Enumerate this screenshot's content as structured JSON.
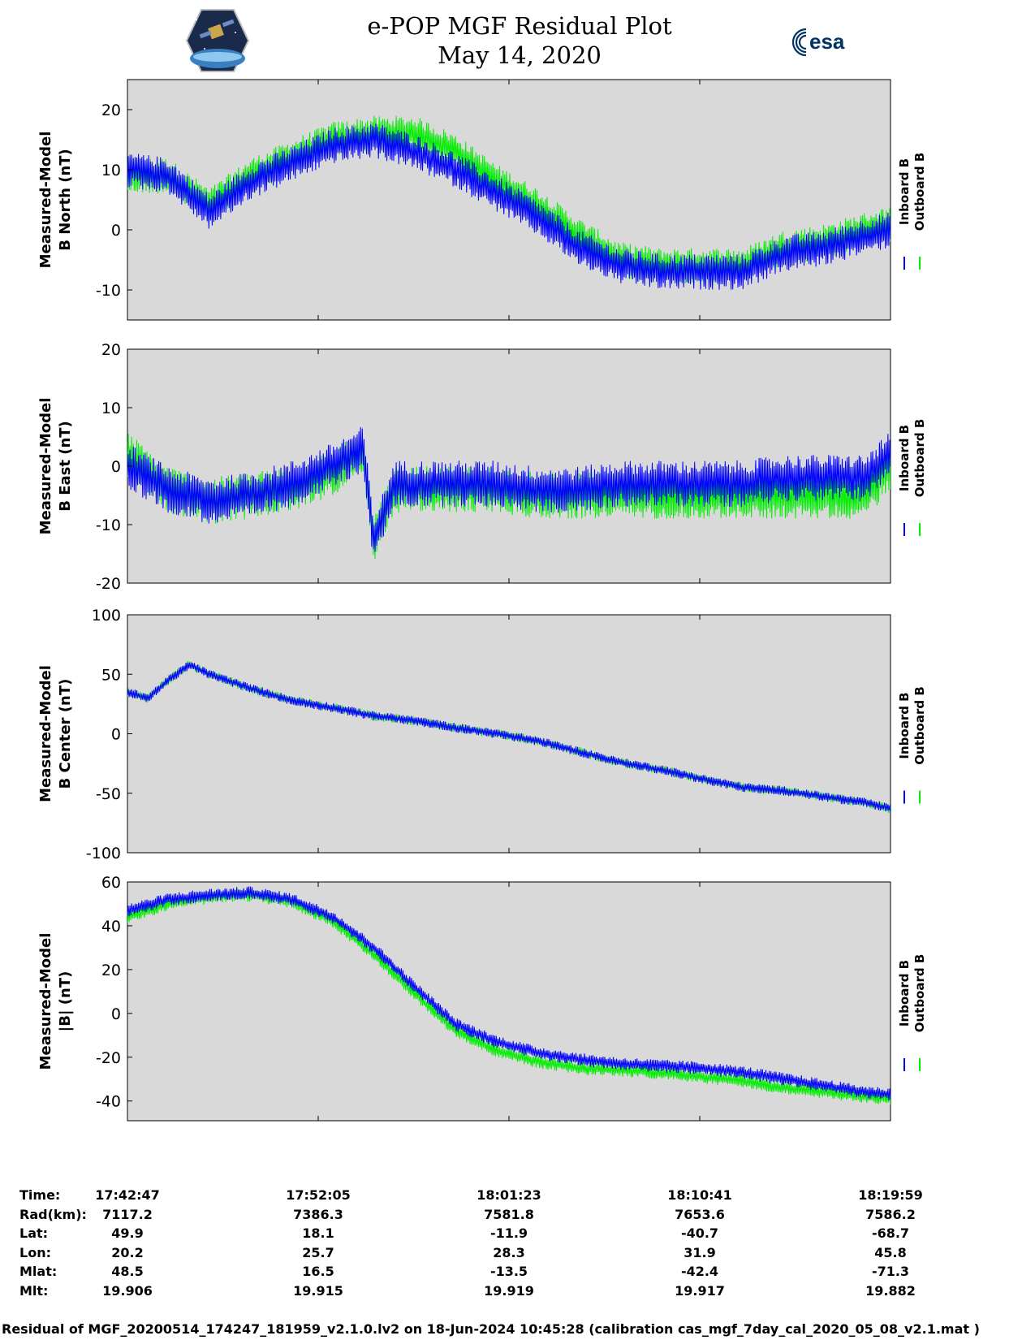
{
  "header": {
    "title_line1": "e-POP MGF Residual Plot",
    "title_line2": "May 14, 2020"
  },
  "logos": {
    "left": "cassiope-mission-logo",
    "right": "esa-logo",
    "esa_text": "esa"
  },
  "colors": {
    "inboard": "#0000ff",
    "outboard": "#00ee00",
    "panel_bg": "#d9d9d9"
  },
  "chart_data": [
    {
      "type": "line",
      "ylabel_line1": "Measured-Model",
      "ylabel_line2": "B North (nT)",
      "ylim": [
        -15,
        25
      ],
      "yticks": [
        20,
        10,
        0,
        -10
      ],
      "ytick_labels": [
        "20",
        "10",
        "0",
        "-10"
      ],
      "legend": [
        "Inboard B",
        "Outboard B"
      ],
      "x_minutes": [
        0,
        2,
        4,
        6,
        8,
        10,
        12,
        14,
        16,
        18,
        20,
        22,
        24,
        26,
        28,
        30,
        32,
        34,
        36,
        37.2
      ],
      "series": [
        {
          "name": "Inboard B",
          "values": [
            10,
            9,
            3,
            8,
            11,
            14,
            15,
            13,
            10,
            6,
            2,
            -3,
            -6,
            -7,
            -7,
            -7,
            -4,
            -3,
            -1,
            0
          ]
        },
        {
          "name": "Outboard B",
          "values": [
            9,
            9,
            4,
            9,
            12,
            15,
            16,
            16,
            13,
            8,
            4,
            -1,
            -5,
            -6,
            -6,
            -6,
            -3,
            -2,
            0,
            1
          ]
        }
      ],
      "noise": [
        3,
        3
      ]
    },
    {
      "type": "line",
      "ylabel_line1": "Measured-Model",
      "ylabel_line2": "B East (nT)",
      "ylim": [
        -20,
        20
      ],
      "yticks": [
        20,
        10,
        0,
        -10,
        -20
      ],
      "ytick_labels": [
        "20",
        "10",
        "0",
        "-10",
        "-20"
      ],
      "legend": [
        "Inboard B",
        "Outboard B"
      ],
      "x_minutes": [
        0,
        2,
        4,
        6,
        8,
        10,
        11.5,
        12,
        13,
        16,
        18,
        20,
        22,
        24,
        26,
        28,
        30,
        32,
        34,
        36,
        37.2
      ],
      "series": [
        {
          "name": "Inboard B",
          "values": [
            0,
            -4,
            -6,
            -5,
            -3,
            0,
            3,
            -13,
            -3,
            -3,
            -3,
            -4,
            -4,
            -3,
            -3,
            -3,
            -3,
            -2,
            -2,
            -2,
            2
          ]
        },
        {
          "name": "Outboard B",
          "values": [
            2,
            -4,
            -6,
            -5,
            -4,
            -1,
            2,
            -13,
            -4,
            -4,
            -4,
            -5,
            -5,
            -5,
            -5,
            -5,
            -5,
            -5,
            -5,
            -5,
            0
          ]
        }
      ],
      "noise": [
        4,
        4
      ]
    },
    {
      "type": "line",
      "ylabel_line1": "Measured-Model",
      "ylabel_line2": "B Center (nT)",
      "ylim": [
        -100,
        100
      ],
      "yticks": [
        100,
        50,
        0,
        -50,
        -100
      ],
      "ytick_labels": [
        "100",
        "50",
        "0",
        "-50",
        "-100"
      ],
      "legend": [
        "Inboard B",
        "Outboard B"
      ],
      "x_minutes": [
        0,
        1,
        2,
        3,
        4,
        6,
        8,
        10,
        12,
        14,
        16,
        18,
        20,
        22,
        24,
        26,
        28,
        30,
        32,
        34,
        36,
        37.2
      ],
      "series": [
        {
          "name": "Inboard B",
          "values": [
            35,
            30,
            45,
            58,
            50,
            38,
            28,
            22,
            15,
            11,
            5,
            0,
            -6,
            -15,
            -24,
            -30,
            -38,
            -45,
            -48,
            -53,
            -58,
            -63
          ]
        },
        {
          "name": "Outboard B",
          "values": [
            35,
            30,
            45,
            58,
            50,
            38,
            28,
            22,
            15,
            11,
            5,
            0,
            -6,
            -15,
            -24,
            -30,
            -38,
            -45,
            -48,
            -53,
            -58,
            -63
          ]
        }
      ],
      "noise": [
        4,
        4
      ]
    },
    {
      "type": "line",
      "ylabel_line1": "Measured-Model",
      "ylabel_line2": "|B| (nT)",
      "ylim": [
        -49,
        60
      ],
      "yticks": [
        60,
        40,
        20,
        0,
        -20,
        -40
      ],
      "ytick_labels": [
        "60",
        "40",
        "20",
        "0",
        "-20",
        "-40"
      ],
      "legend": [
        "Inboard B",
        "Outboard B"
      ],
      "x_minutes": [
        0,
        2,
        4,
        6,
        8,
        10,
        12,
        14,
        16,
        18,
        20,
        22,
        24,
        26,
        28,
        30,
        32,
        34,
        36,
        37.2
      ],
      "series": [
        {
          "name": "Inboard B",
          "values": [
            47,
            52,
            54,
            55,
            52,
            44,
            30,
            12,
            -5,
            -13,
            -18,
            -21,
            -23,
            -24,
            -25,
            -27,
            -30,
            -33,
            -36,
            -37
          ]
        },
        {
          "name": "Outboard B",
          "values": [
            44,
            50,
            53,
            54,
            51,
            42,
            27,
            9,
            -8,
            -17,
            -22,
            -25,
            -26,
            -27,
            -29,
            -31,
            -34,
            -36,
            -38,
            -39
          ]
        }
      ],
      "noise": [
        3,
        3
      ]
    }
  ],
  "orbit_table": {
    "row_labels": [
      "Time:",
      "Rad(km):",
      "Lat:",
      "Lon:",
      "Mlat:",
      "Mlt:"
    ],
    "columns": [
      [
        "17:42:47",
        "7117.2",
        "49.9",
        "20.2",
        "48.5",
        "19.906"
      ],
      [
        "17:52:05",
        "7386.3",
        "18.1",
        "25.7",
        "16.5",
        "19.915"
      ],
      [
        "18:01:23",
        "7581.8",
        "-11.9",
        "28.3",
        "-13.5",
        "19.919"
      ],
      [
        "18:10:41",
        "7653.6",
        "-40.7",
        "31.9",
        "-42.4",
        "19.917"
      ],
      [
        "18:19:59",
        "7586.2",
        "-68.7",
        "45.8",
        "-71.3",
        "19.882"
      ]
    ]
  },
  "footer": {
    "text": "Residual of MGF_20200514_174247_181959_v2.1.0.lv2 on 18-Jun-2024 10:45:28 (calibration cas_mgf_7day_cal_2020_05_08_v2.1.mat )"
  }
}
